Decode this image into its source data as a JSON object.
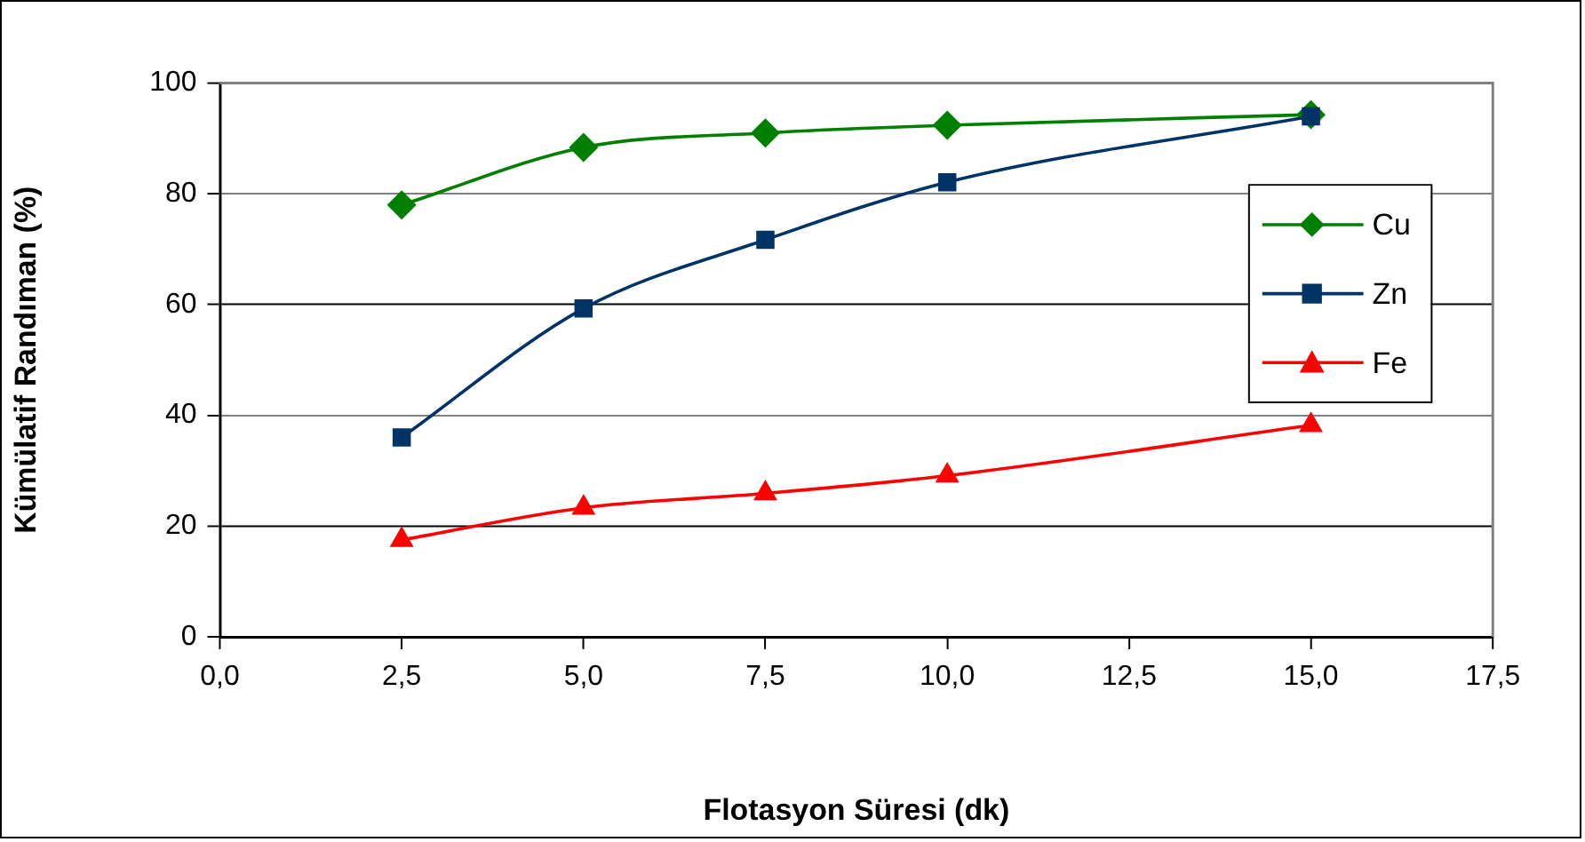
{
  "chart_data": {
    "type": "line",
    "xlabel": "Flotasyon Süresi (dk)",
    "ylabel": "Kümülatif Randıman (%)",
    "x": [
      2.5,
      5,
      7.5,
      10,
      15
    ],
    "series": [
      {
        "name": "Cu",
        "color": "#008000",
        "marker": "diamond",
        "values": [
          78,
          88.4,
          91,
          92.4,
          94.3
        ]
      },
      {
        "name": "Zn",
        "color": "#003366",
        "marker": "square",
        "values": [
          36,
          59.3,
          71.7,
          82.1,
          94
        ]
      },
      {
        "name": "Fe",
        "color": "#ff0000",
        "marker": "triangle",
        "values": [
          17.5,
          23.3,
          25.9,
          29.1,
          38.2
        ]
      }
    ],
    "xlim": [
      0,
      17.5
    ],
    "xticks": [
      {
        "value": 0,
        "label": "0,0"
      },
      {
        "value": 2.5,
        "label": "2,5"
      },
      {
        "value": 5,
        "label": "5,0"
      },
      {
        "value": 7.5,
        "label": "7,5"
      },
      {
        "value": 10,
        "label": "10,0"
      },
      {
        "value": 12.5,
        "label": "12,5"
      },
      {
        "value": 15,
        "label": "15,0"
      },
      {
        "value": 17.5,
        "label": "17,5"
      }
    ],
    "ylim": [
      0,
      100
    ],
    "yticks": [
      0,
      20,
      40,
      60,
      80,
      100
    ],
    "grid": "y",
    "legend": "right",
    "line_style": "solid"
  }
}
